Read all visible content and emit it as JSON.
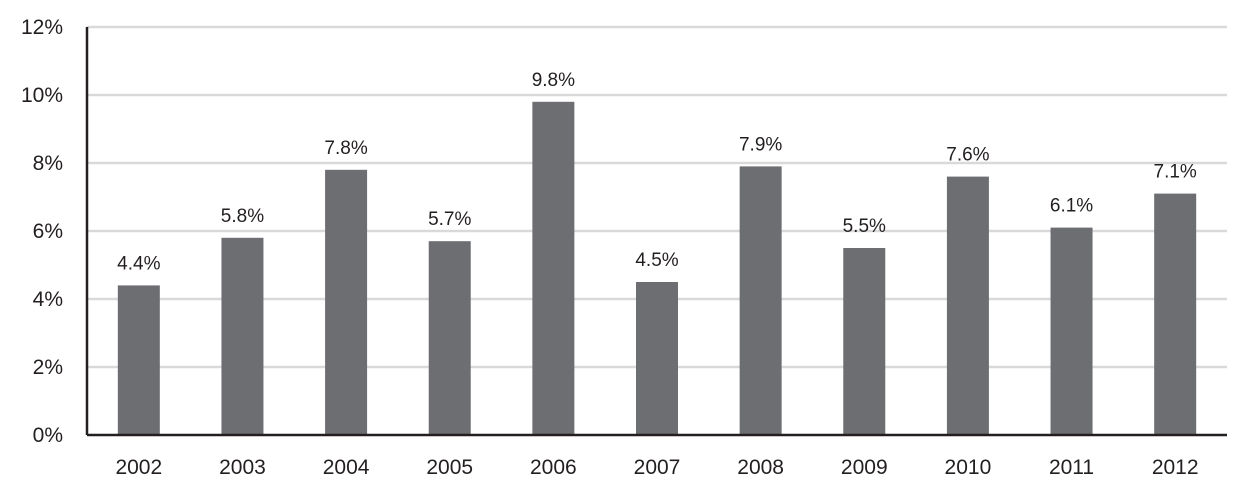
{
  "chart_data": {
    "type": "bar",
    "title": "",
    "xlabel": "",
    "ylabel": "",
    "categories": [
      "2002",
      "2003",
      "2004",
      "2005",
      "2006",
      "2007",
      "2008",
      "2009",
      "2010",
      "2011",
      "2012"
    ],
    "values": [
      4.4,
      5.8,
      7.8,
      5.7,
      9.8,
      4.5,
      7.9,
      5.5,
      7.6,
      6.1,
      7.1
    ],
    "value_labels": [
      "4.4%",
      "5.8%",
      "7.8%",
      "5.7%",
      "9.8%",
      "4.5%",
      "7.9%",
      "5.5%",
      "7.6%",
      "6.1%",
      "7.1%"
    ],
    "ylim": [
      0,
      12
    ],
    "y_ticks": [
      0,
      2,
      4,
      6,
      8,
      10,
      12
    ],
    "y_tick_labels": [
      "0%",
      "2%",
      "4%",
      "6%",
      "8%",
      "10%",
      "12%"
    ],
    "grid": true,
    "legend": "none",
    "colors": {
      "bar": "#6d6e71",
      "grid": "#d9d9d9",
      "axis": "#231f20"
    }
  }
}
